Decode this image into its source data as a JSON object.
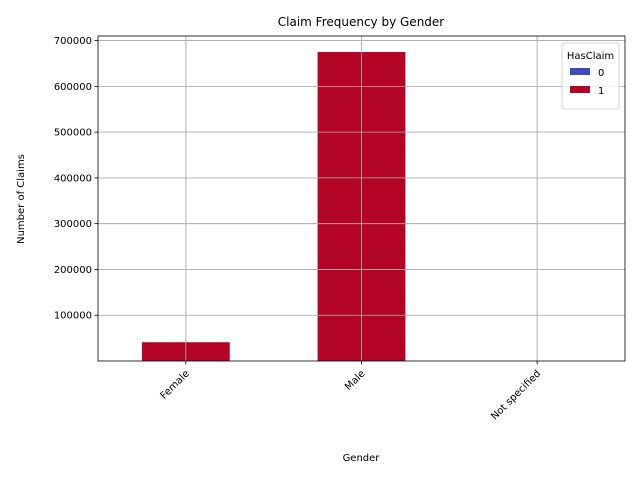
{
  "chart_data": {
    "type": "bar",
    "stacked": true,
    "title": "Claim Frequency by Gender",
    "xlabel": "Gender",
    "ylabel": "Number of Claims",
    "categories": [
      "Female",
      "Male",
      "Not specified"
    ],
    "series": [
      {
        "name": "0",
        "values": [
          0,
          0,
          0
        ],
        "color": "#3b4cc0"
      },
      {
        "name": "1",
        "values": [
          41000,
          675000,
          0
        ],
        "color": "#b40426"
      }
    ],
    "ylim": [
      0,
      710000
    ],
    "yticks": [
      100000,
      200000,
      300000,
      400000,
      500000,
      600000,
      700000
    ],
    "grid": true,
    "legend": {
      "title": "HasClaim",
      "placement": "top-right"
    }
  }
}
